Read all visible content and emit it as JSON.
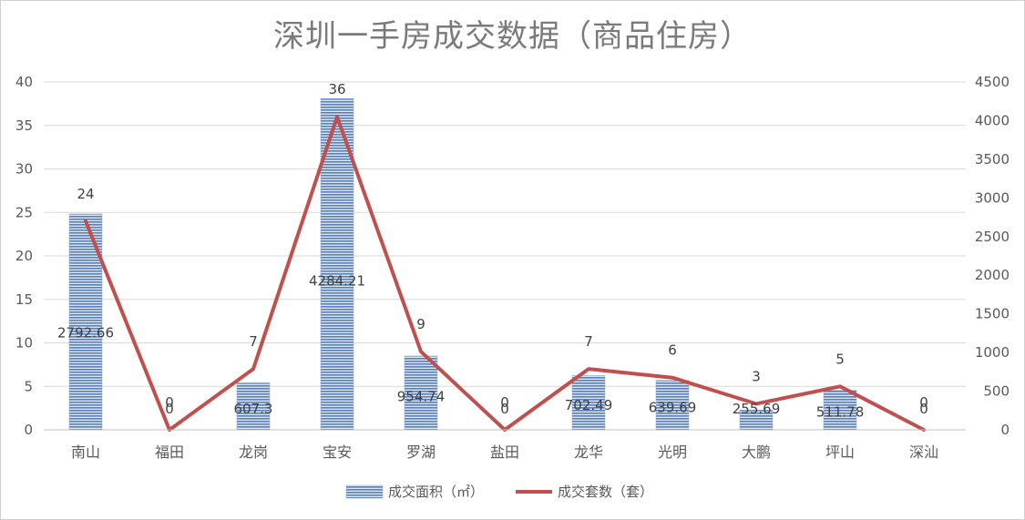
{
  "chart_data": {
    "type": "bar",
    "title": "深圳一手房成交数据（商品住房）",
    "categories": [
      "南山",
      "福田",
      "龙岗",
      "宝安",
      "罗湖",
      "盐田",
      "龙华",
      "光明",
      "大鹏",
      "坪山",
      "深汕"
    ],
    "series": [
      {
        "name": "成交面积（㎡）",
        "type": "bar",
        "axis": "right",
        "color": "#5b7fb8",
        "values": [
          2792.66,
          0,
          607.3,
          4284.21,
          954.74,
          0,
          702.49,
          639.69,
          255.69,
          511.78,
          0
        ],
        "labels": [
          "2792.66",
          "0",
          "607.3",
          "4284.21",
          "954.74",
          "0",
          "702.49",
          "639.69",
          "255.69",
          "511.78",
          "0"
        ]
      },
      {
        "name": "成交套数（套）",
        "type": "line",
        "axis": "left",
        "color": "#c0504d",
        "values": [
          24,
          0,
          7,
          36,
          9,
          0,
          7,
          6,
          3,
          5,
          0
        ],
        "labels": [
          "24",
          "0",
          "7",
          "36",
          "9",
          "0",
          "7",
          "6",
          "3",
          "5",
          "0"
        ]
      }
    ],
    "y_left": {
      "min": 0,
      "max": 40,
      "step": 5,
      "ticks": [
        "0",
        "5",
        "10",
        "15",
        "20",
        "25",
        "30",
        "35",
        "40"
      ]
    },
    "y_right": {
      "min": 0,
      "max": 4500,
      "step": 500,
      "ticks": [
        "0",
        "500",
        "1000",
        "1500",
        "2000",
        "2500",
        "3000",
        "3500",
        "4000",
        "4500"
      ]
    },
    "grid": true,
    "legend_position": "bottom"
  }
}
